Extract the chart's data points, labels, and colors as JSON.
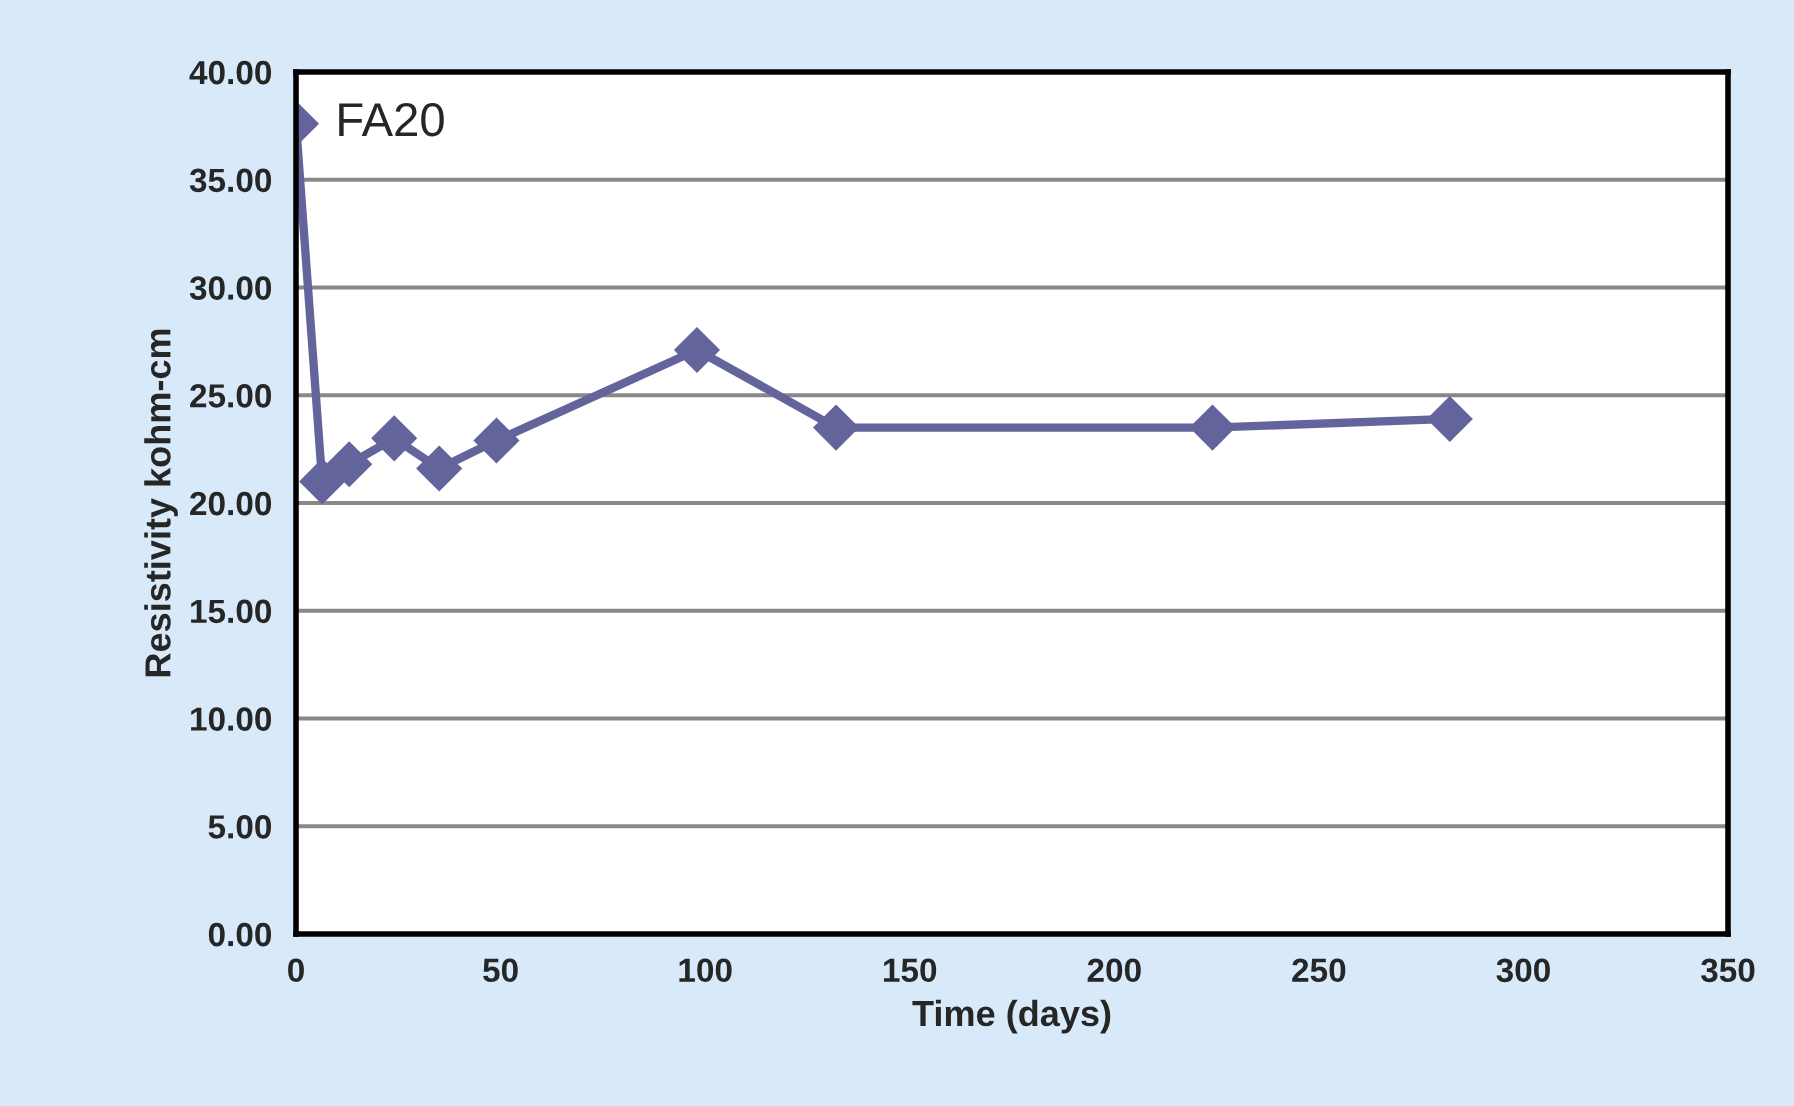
{
  "chart_data": {
    "type": "line",
    "xlabel": "Time (days)",
    "ylabel": "Resistivity kohm-cm",
    "series": [
      {
        "name": "FA20",
        "color": "#64649c",
        "x": [
          0,
          6.4,
          13,
          24,
          35,
          49,
          98,
          132,
          224,
          282
        ],
        "values": [
          37.6,
          21.0,
          21.8,
          23.0,
          21.6,
          22.9,
          27.1,
          23.5,
          23.5,
          23.9
        ]
      }
    ],
    "xlim": [
      0,
      350
    ],
    "xticks": [
      0,
      50,
      100,
      150,
      200,
      250,
      300,
      350
    ],
    "ylim": [
      0,
      40
    ],
    "yticks": [
      {
        "value": 0,
        "label": "0.00"
      },
      {
        "value": 5,
        "label": "5.00"
      },
      {
        "value": 10,
        "label": "10.00"
      },
      {
        "value": 15,
        "label": "15.00"
      },
      {
        "value": 20,
        "label": "20.00"
      },
      {
        "value": 25,
        "label": "25.00"
      },
      {
        "value": 30,
        "label": "30.00"
      },
      {
        "value": 35,
        "label": "35.00"
      },
      {
        "value": 40,
        "label": "40.00"
      }
    ],
    "grid": "y",
    "marker": "diamond",
    "line_style": "solid",
    "legend": false
  }
}
